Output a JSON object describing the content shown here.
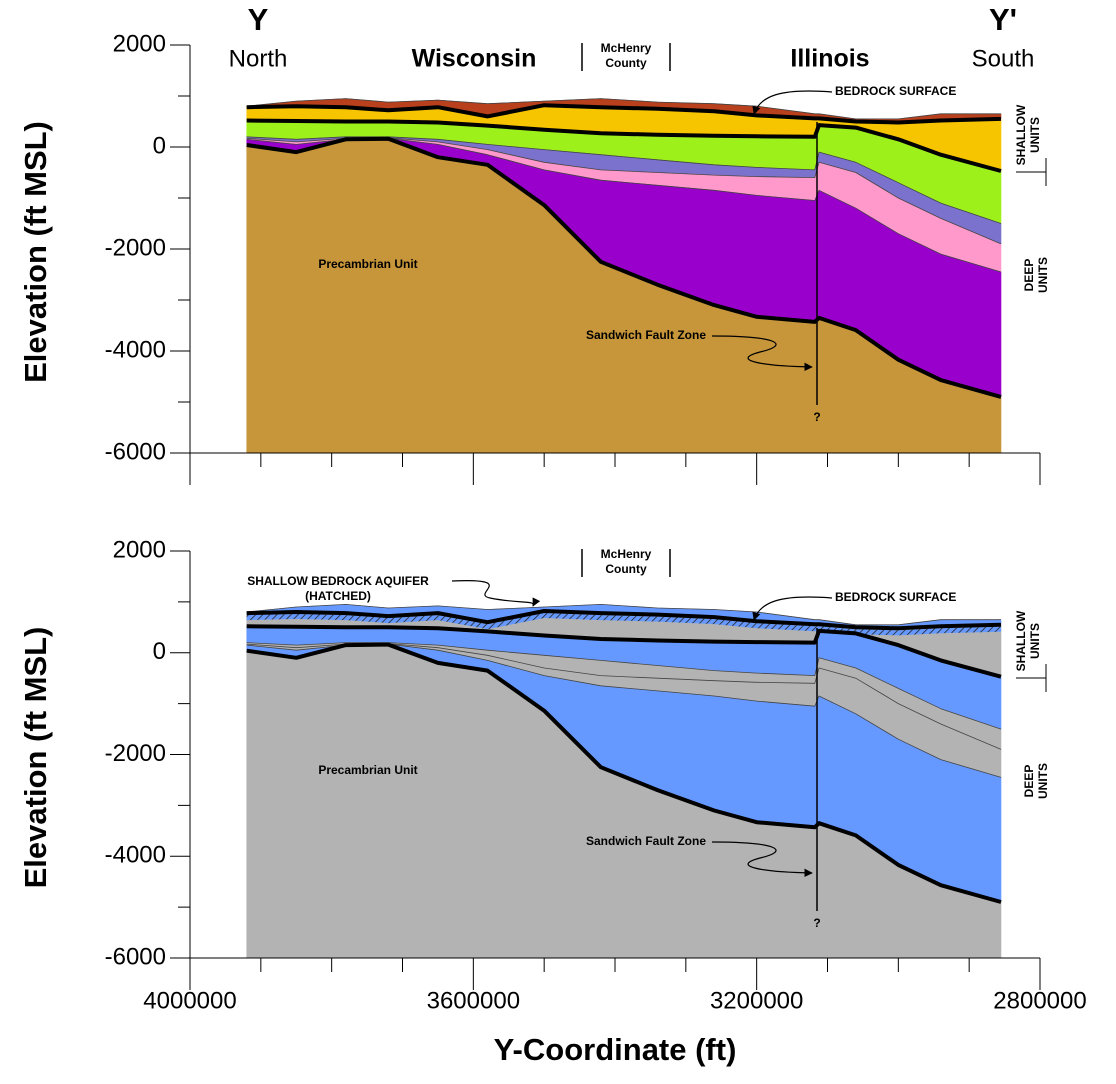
{
  "chart_data": [
    {
      "type": "area",
      "ylabel": "Elevation (ft MSL)",
      "xlim": [
        4000000,
        2800000
      ],
      "ylim": [
        -6000,
        2000
      ],
      "yticks": [
        2000,
        0,
        -2000,
        -4000,
        -6000
      ],
      "yminor": [
        1000,
        -1000,
        -3000,
        -5000
      ],
      "xticks": [
        4000000,
        3600000,
        3200000,
        2800000
      ],
      "show_xtick_labels": false,
      "xminor": [
        3900000,
        3800000,
        3700000,
        3500000,
        3400000,
        3300000,
        3100000,
        3000000,
        2900000
      ],
      "x": [
        3920000,
        3850000,
        3780000,
        3720000,
        3650000,
        3580000,
        3500000,
        3420000,
        3340000,
        3260000,
        3200000,
        3118000,
        3112000,
        3060000,
        3000000,
        2940000,
        2855000
      ],
      "series": [
        {
          "color": "#b8401c",
          "bold": false,
          "values": [
            800,
            900,
            950,
            880,
            920,
            850,
            900,
            950,
            880,
            850,
            800,
            650,
            650,
            550,
            550,
            650,
            650
          ]
        },
        {
          "color": "#f7c400",
          "bold": true,
          "values": [
            780,
            800,
            780,
            720,
            780,
            600,
            820,
            780,
            750,
            700,
            620,
            560,
            560,
            500,
            480,
            520,
            550
          ]
        },
        {
          "color": "#9ef01a",
          "bold": true,
          "values": [
            520,
            510,
            500,
            500,
            480,
            420,
            340,
            270,
            240,
            220,
            210,
            200,
            430,
            380,
            150,
            -150,
            -470
          ]
        },
        {
          "color": "#7a72cc",
          "bold": false,
          "values": [
            200,
            150,
            200,
            200,
            150,
            50,
            -50,
            -150,
            -250,
            -350,
            -400,
            -450,
            -100,
            -300,
            -700,
            -1100,
            -1500
          ]
        },
        {
          "color": "#ff99cc",
          "bold": false,
          "values": [
            170,
            100,
            170,
            180,
            100,
            -50,
            -300,
            -450,
            -500,
            -550,
            -580,
            -600,
            -300,
            -500,
            -1000,
            -1400,
            -1900
          ]
        },
        {
          "color": "#9900cc",
          "bold": false,
          "values": [
            150,
            50,
            150,
            170,
            50,
            -150,
            -450,
            -650,
            -750,
            -850,
            -950,
            -1050,
            -850,
            -1200,
            -1700,
            -2100,
            -2450
          ]
        },
        {
          "color": "#c8963a",
          "bold": true,
          "values": [
            40,
            -100,
            150,
            160,
            -200,
            -350,
            -1140,
            -2250,
            -2700,
            -3100,
            -3330,
            -3430,
            -3350,
            -3590,
            -4170,
            -4570,
            -4900
          ]
        }
      ],
      "header": {
        "left": "Y",
        "right": "Y'",
        "left_dir": "North",
        "right_dir": "South",
        "state_left": "Wisconsin",
        "county": [
          "McHenry",
          "County"
        ],
        "state_right": "Illinois"
      },
      "labels": {
        "bedrock": "BEDROCK SURFACE",
        "shallow": [
          "SHALLOW",
          "UNITS"
        ],
        "deep": [
          "DEEP",
          "UNITS"
        ],
        "precambrian": "Precambrian Unit",
        "fault": "Sandwich Fault Zone",
        "fault_query": "?"
      }
    },
    {
      "type": "area",
      "ylabel": "Elevation (ft MSL)",
      "xlabel": "Y-Coordinate (ft)",
      "xlim": [
        4000000,
        2800000
      ],
      "ylim": [
        -6000,
        2000
      ],
      "yticks": [
        2000,
        0,
        -2000,
        -4000,
        -6000
      ],
      "yminor": [
        1000,
        -1000,
        -3000,
        -5000
      ],
      "xticks": [
        4000000,
        3600000,
        3200000,
        2800000
      ],
      "show_xtick_labels": true,
      "xminor": [
        3900000,
        3800000,
        3700000,
        3500000,
        3400000,
        3300000,
        3100000,
        3000000,
        2900000
      ],
      "x": [
        3920000,
        3850000,
        3780000,
        3720000,
        3650000,
        3580000,
        3500000,
        3420000,
        3340000,
        3260000,
        3200000,
        3118000,
        3112000,
        3060000,
        3000000,
        2940000,
        2855000
      ],
      "series": [
        {
          "color": "#6699ff",
          "bold": false,
          "values": [
            800,
            900,
            950,
            880,
            920,
            850,
            900,
            950,
            880,
            850,
            800,
            650,
            650,
            550,
            550,
            650,
            650
          ]
        },
        {
          "color": "#b3b3b3",
          "bold": true,
          "values": [
            780,
            800,
            780,
            720,
            780,
            600,
            820,
            780,
            750,
            700,
            620,
            560,
            560,
            500,
            480,
            520,
            550
          ]
        },
        {
          "color": "#6699ff",
          "bold": true,
          "values": [
            520,
            510,
            500,
            500,
            480,
            420,
            340,
            270,
            240,
            220,
            210,
            200,
            430,
            380,
            150,
            -150,
            -470
          ]
        },
        {
          "color": "#b3b3b3",
          "bold": false,
          "values": [
            200,
            150,
            200,
            200,
            150,
            50,
            -50,
            -150,
            -250,
            -350,
            -400,
            -450,
            -100,
            -300,
            -700,
            -1100,
            -1500
          ]
        },
        {
          "color": "#b3b3b3",
          "bold": false,
          "values": [
            170,
            100,
            170,
            180,
            100,
            -50,
            -300,
            -450,
            -500,
            -550,
            -580,
            -600,
            -300,
            -500,
            -1000,
            -1400,
            -1900
          ]
        },
        {
          "color": "#6699ff",
          "bold": false,
          "values": [
            150,
            50,
            150,
            170,
            50,
            -150,
            -450,
            -650,
            -750,
            -850,
            -950,
            -1050,
            -850,
            -1200,
            -1700,
            -2100,
            -2450
          ]
        },
        {
          "color": "#b3b3b3",
          "bold": true,
          "values": [
            40,
            -100,
            150,
            160,
            -200,
            -350,
            -1140,
            -2250,
            -2700,
            -3100,
            -3330,
            -3430,
            -3350,
            -3590,
            -4170,
            -4570,
            -4900
          ]
        }
      ],
      "header": {
        "county": [
          "McHenry",
          "County"
        ]
      },
      "labels": {
        "aquifer": [
          "SHALLOW BEDROCK AQUIFER",
          "(HATCHED)"
        ],
        "bedrock": "BEDROCK SURFACE",
        "shallow": [
          "SHALLOW",
          "UNITS"
        ],
        "deep": [
          "DEEP",
          "UNITS"
        ],
        "precambrian": "Precambrian Unit",
        "fault": "Sandwich Fault Zone",
        "fault_query": "?"
      }
    }
  ]
}
